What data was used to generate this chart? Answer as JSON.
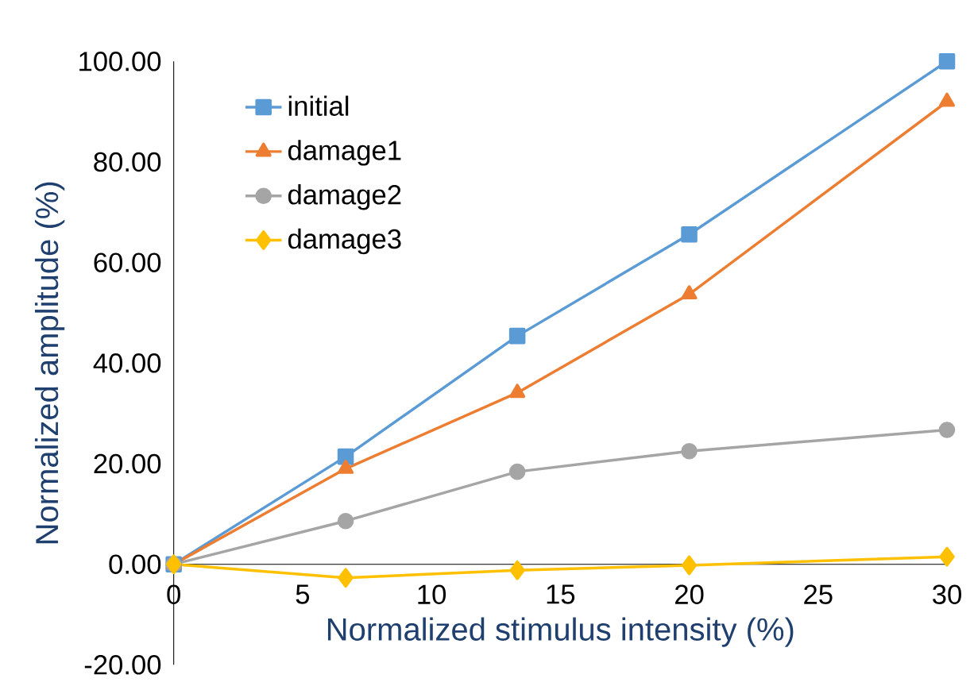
{
  "chart_data": {
    "type": "line",
    "xlabel": "Normalized stimulus intensity (%)",
    "ylabel": "Normalized amplitude (%)",
    "x": [
      0,
      6.67,
      13.33,
      20,
      30
    ],
    "series": [
      {
        "name": "initial",
        "color": "#5b9bd5",
        "marker": "square",
        "values": [
          0,
          21.4,
          45.4,
          65.6,
          100
        ]
      },
      {
        "name": "damage1",
        "color": "#ed7d31",
        "marker": "triangle",
        "values": [
          0,
          19,
          34.1,
          53.7,
          92
        ]
      },
      {
        "name": "damage2",
        "color": "#a5a5a5",
        "marker": "circle",
        "values": [
          0,
          8.6,
          18.4,
          22.5,
          26.7
        ]
      },
      {
        "name": "damage3",
        "color": "#ffc000",
        "marker": "diamond",
        "values": [
          0,
          -2.7,
          -1.2,
          -0.2,
          1.5
        ]
      }
    ],
    "xlim": [
      0,
      30
    ],
    "xticks": [
      0,
      5,
      10,
      15,
      20,
      25,
      30
    ],
    "ylim": [
      -20,
      100
    ],
    "yticks": [
      {
        "value": -20,
        "label": "-20.00"
      },
      {
        "value": 0,
        "label": "0.00"
      },
      {
        "value": 20,
        "label": "20.00"
      },
      {
        "value": 40,
        "label": "40.00"
      },
      {
        "value": 60,
        "label": "60.00"
      },
      {
        "value": 80,
        "label": "80.00"
      },
      {
        "value": 100,
        "label": "100.00"
      }
    ],
    "grid": false,
    "legend": "top left",
    "line_style": "solid"
  }
}
